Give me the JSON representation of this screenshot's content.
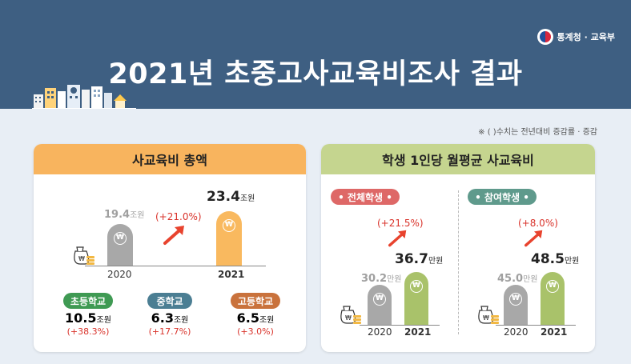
{
  "header": {
    "logo_text": "통계청 · 교육부",
    "title": "2021년 초중고사교육비조사 결과"
  },
  "note": "※ (      )수치는 전년대비 증감률 · 증감",
  "total": {
    "heading": "사교육비 총액",
    "unit": "조원",
    "v2020": "19.4",
    "v2021": "23.4",
    "rate": "(+21.0%)",
    "y2020": "2020",
    "y2021": "2021",
    "coin_symbol": "₩",
    "schools": [
      {
        "label": "초등학교",
        "value": "10.5",
        "rate": "(+38.3%)"
      },
      {
        "label": "중학교",
        "value": "6.3",
        "rate": "(+17.7%)"
      },
      {
        "label": "고등학교",
        "value": "6.5",
        "rate": "(+3.0%)"
      }
    ]
  },
  "monthly": {
    "heading": "학생 1인당 월평균 사교육비",
    "unit": "만원",
    "all": {
      "label": "• 전체학생 •",
      "v2020": "30.2",
      "v2021": "36.7",
      "rate": "(+21.5%)"
    },
    "participating": {
      "label": "• 참여학생 •",
      "v2020": "45.0",
      "v2021": "48.5",
      "rate": "(+8.0%)"
    },
    "y2020": "2020",
    "y2021": "2021"
  },
  "colors": {
    "header_bg": "#3e5f82",
    "rate_red": "#d9332b",
    "bar_2020": "#a8a8a8",
    "bar_total_2021": "#f9b95f",
    "bar_monthly_2021": "#a9c26a"
  },
  "icons": [
    "government-logo-icon",
    "city-skyline-icon",
    "money-bag-icon",
    "won-coin-icon",
    "up-arrow-icon"
  ]
}
